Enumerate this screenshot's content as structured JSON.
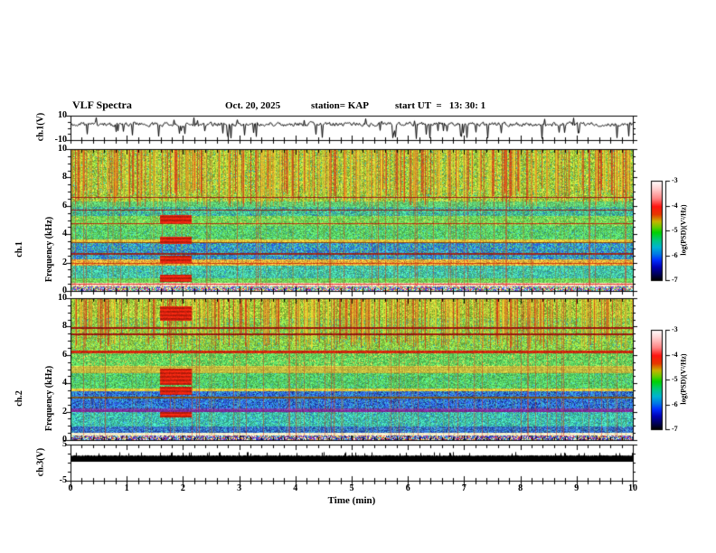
{
  "title": {
    "main": "VLF Spectra",
    "date": "Oct. 20, 2025",
    "station": "station= KAP",
    "start_ut": "start UT  =   13: 30: 1"
  },
  "xaxis": {
    "label": "Time (min)",
    "min": 0,
    "max": 10,
    "ticks": [
      0,
      1,
      2,
      3,
      4,
      5,
      6,
      7,
      8,
      9,
      10
    ],
    "minor_step": 0.2
  },
  "panels": {
    "wave": {
      "ylabel": "ch.1(V)",
      "ymin": -10,
      "ymax": 10,
      "yticks": [
        10,
        -10
      ]
    },
    "spec1": {
      "ylabel_ch": "ch.1",
      "ylabel_axis": "Frequency (kHz)",
      "ymin": 0,
      "ymax": 10,
      "yticks": [
        0,
        2,
        4,
        6,
        8,
        10
      ]
    },
    "spec2": {
      "ylabel_ch": "ch.2",
      "ylabel_axis": "Frequency (kHz)",
      "ymin": 0,
      "ymax": 10,
      "yticks": [
        0,
        2,
        4,
        6,
        8,
        10
      ]
    },
    "ch3": {
      "ylabel": "ch.3(V)",
      "ymin": -5,
      "ymax": 5,
      "yticks": [
        5,
        -5
      ]
    }
  },
  "colorbar": {
    "label": "log(PSD)(V²/Hz)",
    "ticks": [
      -3,
      -4,
      -5,
      -6,
      -7
    ],
    "gradient": [
      [
        0,
        "#ffffff"
      ],
      [
        0.08,
        "#ffd2d2"
      ],
      [
        0.18,
        "#ff8484"
      ],
      [
        0.26,
        "#ff1410"
      ],
      [
        0.34,
        "#e63800"
      ],
      [
        0.41,
        "#c8b400"
      ],
      [
        0.47,
        "#64cc00"
      ],
      [
        0.52,
        "#00d200"
      ],
      [
        0.6,
        "#00c87e"
      ],
      [
        0.67,
        "#00b4d2"
      ],
      [
        0.74,
        "#0078e6"
      ],
      [
        0.8,
        "#002cff"
      ],
      [
        0.87,
        "#0000b4"
      ],
      [
        0.94,
        "#00005a"
      ],
      [
        1,
        "#000000"
      ]
    ]
  },
  "chart_data": {
    "figure": "VLF multi-panel spectra, station KAP, Oct. 20 2025, start UT 13:30:1",
    "x": {
      "label": "Time (min)",
      "range": [
        0,
        10
      ],
      "major_tick_step": 1,
      "minor_tick_step": 0.2
    },
    "event": {
      "t0": 1.58,
      "t1": 2.15,
      "description": "broadband red emission burst visible in both spectrograms"
    },
    "panels": [
      {
        "id": "ch1_waveform",
        "type": "line",
        "yrange": [
          -10,
          10
        ],
        "signal": {
          "mean_V": 3,
          "noise_V": 2.6,
          "neg_spike_prob": 0.055,
          "pos_spike_prob": 0.03,
          "seed": 11
        }
      },
      {
        "id": "ch1_spectrogram",
        "type": "heatmap",
        "yrange": [
          0,
          10
        ],
        "zrange": [
          -7,
          -3
        ],
        "seed": 21,
        "bands": [
          {
            "f": [
              6.3,
              10
            ],
            "base": [
              150,
              205,
              60
            ],
            "noise": 0.32,
            "mix": [
              {
                "c": [
                  60,
                  190,
                  170
                ],
                "p": 0.07
              },
              {
                "c": [
                  235,
                  220,
                  80
                ],
                "p": 0.15
              }
            ]
          },
          {
            "f": [
              5.9,
              6.3
            ],
            "base": [
              95,
              205,
              115
            ],
            "noise": 0.25
          },
          {
            "f": [
              5.3,
              5.9
            ],
            "base": [
              70,
              195,
              145
            ],
            "noise": 0.3,
            "mix": [
              {
                "c": [
                  45,
                  120,
                  215
                ],
                "p": 0.12
              }
            ]
          },
          {
            "f": [
              4.6,
              5.3
            ],
            "base": [
              110,
              215,
              90
            ],
            "noise": 0.25,
            "mix": [
              {
                "c": [
                  225,
                  210,
                  80
                ],
                "p": 0.1
              }
            ]
          },
          {
            "f": [
              3.6,
              4.6
            ],
            "base": [
              90,
              210,
              100
            ],
            "noise": 0.3,
            "mix": [
              {
                "c": [
                  60,
                  190,
                  190
                ],
                "p": 0.13
              }
            ]
          },
          {
            "f": [
              3.42,
              3.6
            ],
            "base": [
              225,
              205,
              60
            ],
            "noise": 0.2
          },
          {
            "f": [
              2.25,
              3.42
            ],
            "base": [
              55,
              170,
              190
            ],
            "noise": 0.32,
            "mix": [
              {
                "c": [
                  40,
                  90,
                  225
                ],
                "p": 0.28
              },
              {
                "c": [
                  95,
                  205,
                  115
                ],
                "p": 0.15
              }
            ]
          },
          {
            "f": [
              1.78,
              2.25
            ],
            "base": [
              235,
              185,
              60
            ],
            "noise": 0.25,
            "mix": [
              {
                "c": [
                  230,
                  90,
                  40
                ],
                "p": 0.1
              }
            ]
          },
          {
            "f": [
              0.9,
              1.78
            ],
            "base": [
              70,
              200,
              160
            ],
            "noise": 0.3,
            "mix": [
              {
                "c": [
                  50,
                  150,
                  220
                ],
                "p": 0.1
              }
            ]
          },
          {
            "f": [
              0.6,
              0.9
            ],
            "base": [
              110,
              210,
              90
            ],
            "noise": 0.25
          },
          {
            "f": [
              0.32,
              0.6
            ],
            "base": [
              250,
              232,
              198
            ],
            "noise": 0.12,
            "mix": [
              {
                "c": [
                  245,
                  150,
                  150
                ],
                "p": 0.18
              }
            ]
          },
          {
            "f": [
              0,
              0.32
            ],
            "base": [
              150,
              60,
              200
            ],
            "noise": 0.2
          }
        ],
        "hlines": [
          {
            "f": 6.6,
            "c": [
              150,
              30,
              20
            ]
          },
          {
            "f": 5.7,
            "c": [
              150,
              30,
              20
            ]
          },
          {
            "f": 4.75,
            "c": [
              185,
              45,
              20
            ]
          },
          {
            "f": 3.4,
            "c": [
              140,
              70,
              20
            ]
          },
          {
            "f": 2.6,
            "c": [
              150,
              40,
              30
            ]
          },
          {
            "f": 1.95,
            "c": [
              205,
              60,
              20
            ]
          },
          {
            "f": 0.47,
            "c": [
              235,
              60,
              60
            ]
          }
        ],
        "streaks": {
          "fmin": 5.9,
          "density": 0.55,
          "colors": [
            [
              225,
              35,
              15
            ],
            [
              245,
              140,
              25
            ],
            [
              250,
              210,
              45
            ]
          ]
        },
        "thin_streaks": {
          "density": 0.1,
          "color": [
            170,
            130,
            40
          ],
          "alpha": 0.35,
          "red_density": 0.05,
          "red_color": [
            220,
            60,
            30
          ],
          "red_alpha": 0.5
        },
        "event": {
          "t0": 1.58,
          "t1": 2.15,
          "bright": [
            245,
            40,
            18
          ],
          "dark": [
            185,
            28,
            10
          ],
          "bands": [
            [
              4.8,
              5.35
            ],
            [
              3.3,
              3.8
            ],
            [
              2.0,
              2.5
            ],
            [
              0.62,
              1.15
            ]
          ]
        },
        "speckle": {
          "fmax": 0.32,
          "colors": [
            [
              150,
              60,
              200
            ],
            [
              50,
              70,
              220
            ],
            [
              70,
              200,
              220
            ],
            [
              235,
              225,
              95
            ],
            [
              225,
              70,
              60
            ],
            [
              100,
              200,
              110
            ],
            [
              245,
              245,
              245
            ]
          ]
        }
      },
      {
        "id": "ch2_spectrogram",
        "type": "heatmap",
        "yrange": [
          0,
          10
        ],
        "zrange": [
          -7,
          -3
        ],
        "seed": 42,
        "bands": [
          {
            "f": [
              8.6,
              10
            ],
            "base": [
              150,
              205,
              60
            ],
            "noise": 0.32,
            "mix": [
              {
                "c": [
                  235,
                  220,
                  80
                ],
                "p": 0.15
              }
            ]
          },
          {
            "f": [
              6.3,
              8.6
            ],
            "base": [
              140,
              210,
              70
            ],
            "noise": 0.3,
            "mix": [
              {
                "c": [
                  60,
                  190,
                  170
                ],
                "p": 0.1
              }
            ]
          },
          {
            "f": [
              5.25,
              6.3
            ],
            "base": [
              95,
              210,
              95
            ],
            "noise": 0.28,
            "mix": [
              {
                "c": [
                  230,
                  215,
                  80
                ],
                "p": 0.12
              }
            ]
          },
          {
            "f": [
              4.7,
              5.25
            ],
            "base": [
              215,
              208,
              70
            ],
            "noise": 0.18,
            "stripe": true
          },
          {
            "f": [
              3.6,
              4.7
            ],
            "base": [
              85,
              205,
              100
            ],
            "noise": 0.3,
            "mix": [
              {
                "c": [
                  60,
                  185,
                  190
                ],
                "p": 0.1
              }
            ]
          },
          {
            "f": [
              3.42,
              3.6
            ],
            "base": [
              225,
              205,
              60
            ],
            "noise": 0.2
          },
          {
            "f": [
              2.2,
              3.42
            ],
            "base": [
              45,
              95,
              215
            ],
            "noise": 0.35,
            "mix": [
              {
                "c": [
                  55,
                  175,
                  215
                ],
                "p": 0.3
              },
              {
                "c": [
                  20,
                  40,
                  130
                ],
                "p": 0.12
              }
            ]
          },
          {
            "f": [
              2.0,
              2.2
            ],
            "base": [
              110,
              65,
              170
            ],
            "noise": 0.3
          },
          {
            "f": [
              0.95,
              2.0
            ],
            "base": [
              65,
              200,
              170
            ],
            "noise": 0.3,
            "mix": [
              {
                "c": [
                  45,
                  130,
                  215
                ],
                "p": 0.12
              }
            ]
          },
          {
            "f": [
              0.5,
              0.95
            ],
            "base": [
              55,
              115,
              205
            ],
            "noise": 0.32,
            "mix": [
              {
                "c": [
                  30,
                  60,
                  160
                ],
                "p": 0.2
              },
              {
                "c": [
                  70,
                  200,
                  190
                ],
                "p": 0.15
              }
            ]
          },
          {
            "f": [
              0.32,
              0.5
            ],
            "base": [
              250,
              240,
              205
            ],
            "noise": 0.1
          },
          {
            "f": [
              0,
              0.32
            ],
            "base": [
              140,
              60,
              200
            ],
            "noise": 0.2
          }
        ],
        "hlines": [
          {
            "f": 7.9,
            "c": [
              150,
              25,
              15
            ]
          },
          {
            "f": 7.45,
            "c": [
              150,
              25,
              15
            ]
          },
          {
            "f": 6.2,
            "c": [
              205,
              40,
              15
            ],
            "hw": 0.1
          },
          {
            "f": 3.0,
            "c": [
              120,
              85,
              30
            ]
          },
          {
            "f": 2.05,
            "c": [
              125,
              40,
              150
            ]
          }
        ],
        "streaks": {
          "fmin": 6.3,
          "density": 0.5,
          "colors": [
            [
              225,
              35,
              15
            ],
            [
              245,
              140,
              25
            ],
            [
              250,
              210,
              45
            ]
          ]
        },
        "thin_streaks": {
          "density": 0.12,
          "color": [
            170,
            130,
            40
          ],
          "alpha": 0.32,
          "red_density": 0.05,
          "red_color": [
            220,
            60,
            30
          ],
          "red_alpha": 0.5
        },
        "event": {
          "t0": 1.58,
          "t1": 2.15,
          "bright": [
            245,
            40,
            18
          ],
          "dark": [
            185,
            28,
            10
          ],
          "bands": [
            [
              8.4,
              9.4
            ],
            [
              3.9,
              5.0
            ],
            [
              3.2,
              3.75
            ],
            [
              1.6,
              2.0
            ]
          ]
        },
        "speckle": {
          "fmax": 0.32,
          "colors": [
            [
              140,
              60,
              200
            ],
            [
              45,
              60,
              215
            ],
            [
              245,
              245,
              248
            ],
            [
              70,
              190,
              215
            ],
            [
              235,
              220,
              95
            ],
            [
              225,
              70,
              70
            ],
            [
              40,
              40,
              90
            ]
          ]
        }
      },
      {
        "id": "ch3_waveform",
        "type": "line",
        "yrange": [
          -5,
          5
        ],
        "signal": {
          "band_top_V": 2.0,
          "band_bottom_V": 0.25,
          "spike_prob": 0.08,
          "spike_top_V": 2.8,
          "seed": 5
        }
      }
    ]
  }
}
